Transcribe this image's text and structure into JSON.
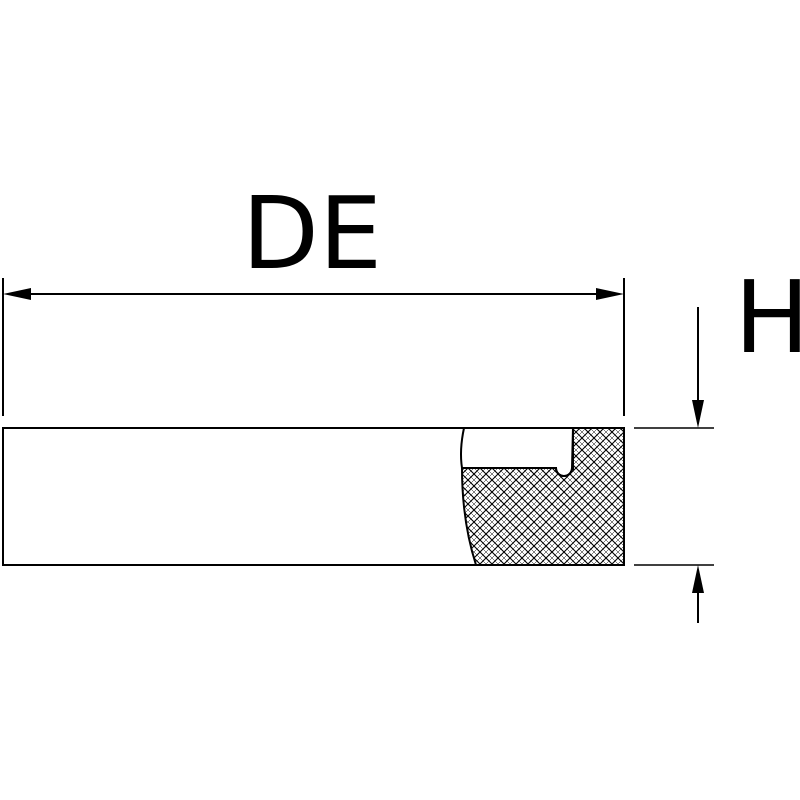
{
  "labels": {
    "outer_diameter": "DE",
    "height": "H"
  },
  "colors": {
    "line": "#000000",
    "background": "#ffffff"
  }
}
